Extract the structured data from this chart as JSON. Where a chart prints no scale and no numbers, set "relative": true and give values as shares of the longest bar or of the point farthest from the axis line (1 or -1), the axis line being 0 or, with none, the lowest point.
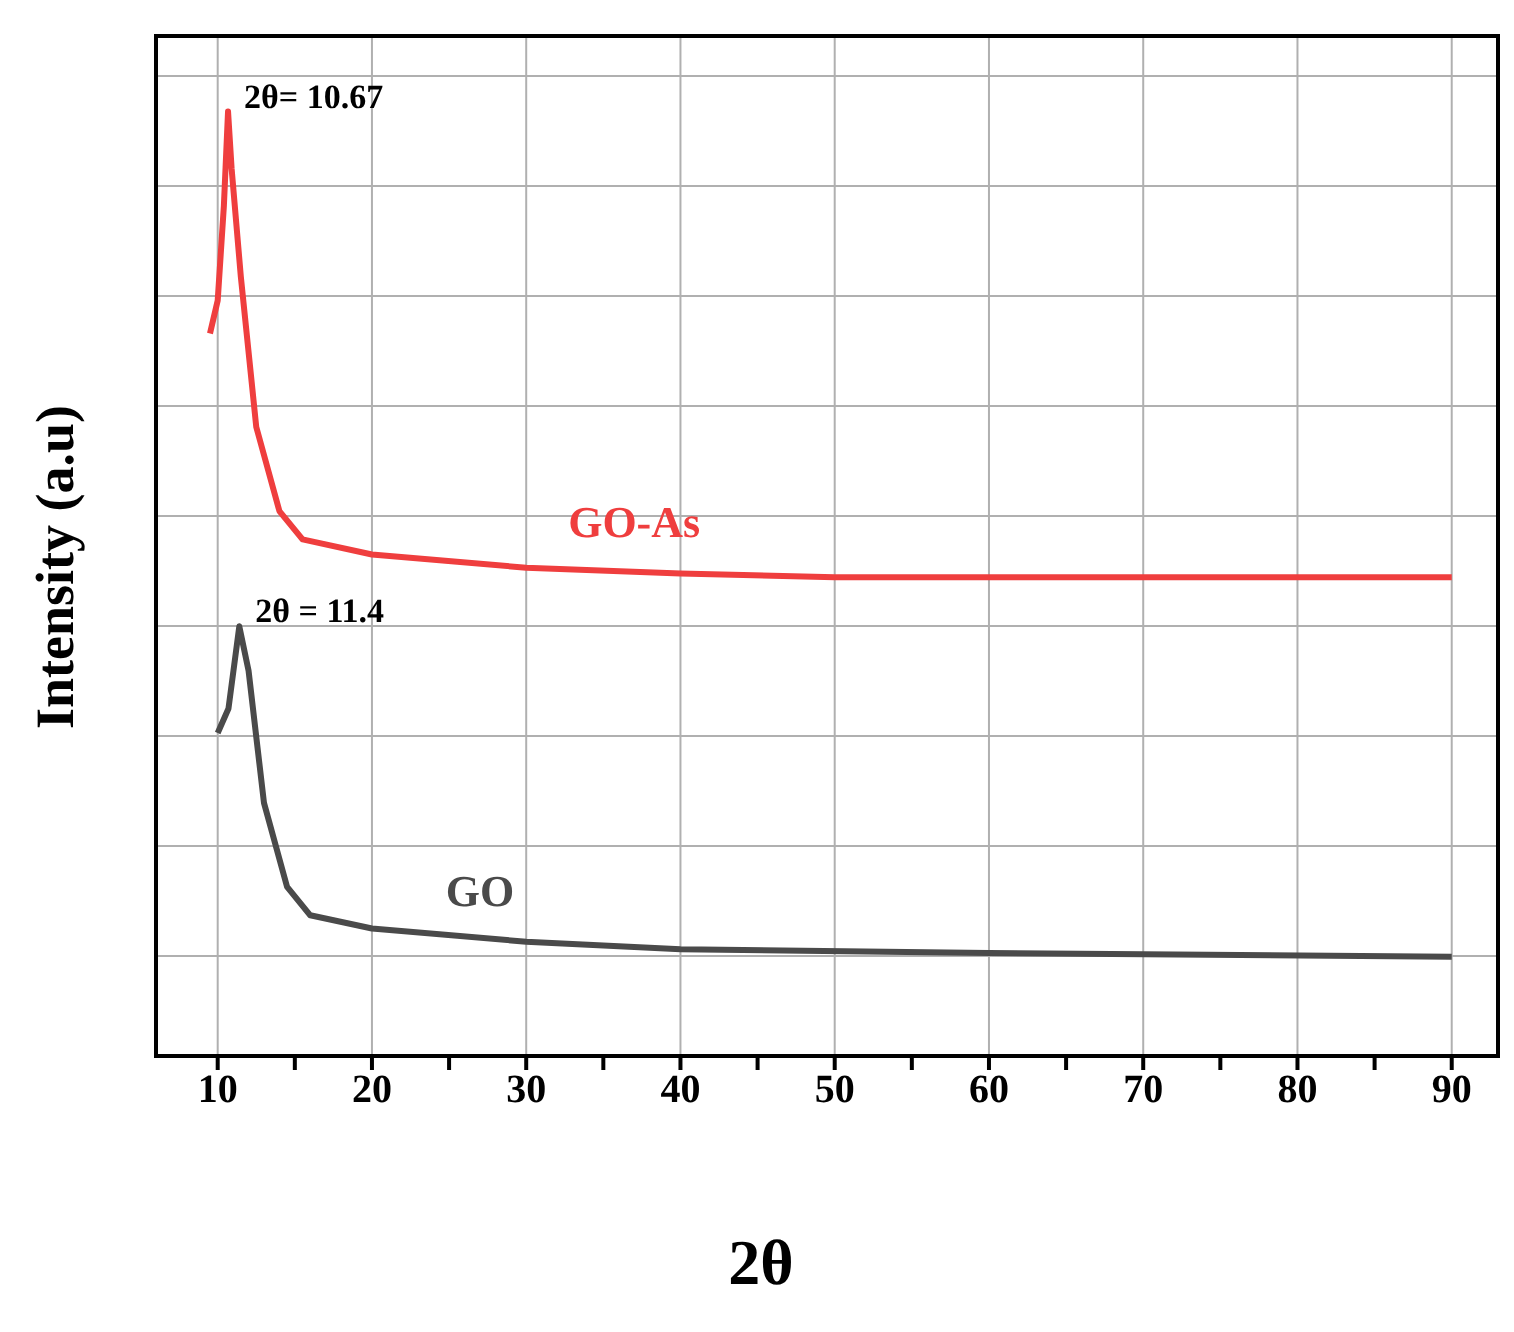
{
  "chart_data": {
    "type": "line",
    "xlabel": "2θ",
    "ylabel": "Intensity (a.u)",
    "relative": true,
    "xlim": [
      6,
      93
    ],
    "xticks": [
      10,
      {
        "value": 15,
        "label": null
      },
      20,
      {
        "value": 25,
        "label": null
      },
      30,
      {
        "value": 35,
        "label": null
      },
      40,
      {
        "value": 45,
        "label": null
      },
      50,
      {
        "value": 55,
        "label": null
      },
      60,
      {
        "value": 65,
        "label": null
      },
      70,
      {
        "value": 75,
        "label": null
      },
      80,
      {
        "value": 85,
        "label": null
      },
      90
    ],
    "grid": true,
    "marker": "none",
    "line_style": "solid",
    "series": [
      {
        "name": "GO-As",
        "color": "#ef3e3e",
        "x": [
          9.5,
          10,
          10.4,
          10.67,
          10.9,
          11.5,
          12.5,
          14,
          15.5,
          20,
          30,
          40,
          50,
          60,
          70,
          80,
          90
        ],
        "values": [
          0.765,
          0.8,
          0.9,
          1.0,
          0.94,
          0.825,
          0.666,
          0.577,
          0.547,
          0.531,
          0.517,
          0.511,
          0.507,
          0.507,
          0.507,
          0.507,
          0.507
        ]
      },
      {
        "name": "GO",
        "color": "#4a4a4a",
        "x": [
          10,
          10.7,
          11.4,
          12,
          13,
          14.5,
          16,
          20,
          30,
          40,
          60,
          90
        ],
        "values": [
          0.342,
          0.368,
          0.455,
          0.408,
          0.268,
          0.179,
          0.149,
          0.135,
          0.121,
          0.113,
          0.109,
          0.105
        ]
      }
    ],
    "annotations": [
      {
        "text": "2θ= 10.67",
        "x": 10.67,
        "y": 1.0
      },
      {
        "text": "2θ = 11.4",
        "x": 11.4,
        "y": 0.455
      }
    ]
  }
}
